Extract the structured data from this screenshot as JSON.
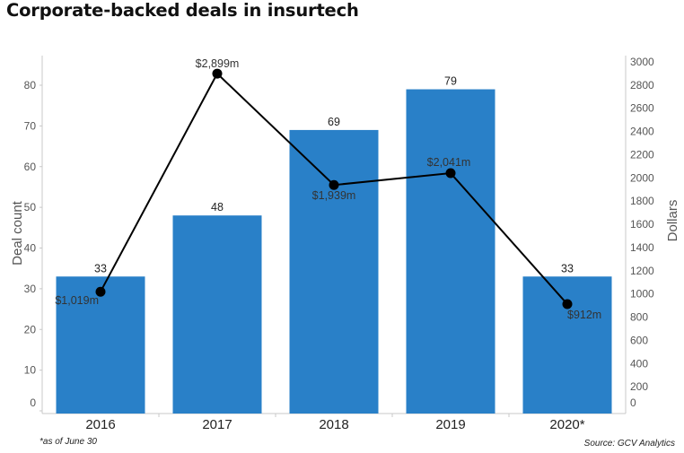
{
  "title": "Corporate-backed deals in insurtech",
  "footnote": "*as of June 30",
  "source": "Source: GCV Analytics",
  "colors": {
    "bar": "#2980c8",
    "line": "#000000",
    "axis": "#c8c8c8"
  },
  "chart_data": {
    "type": "bar",
    "title": "Corporate-backed deals in insurtech",
    "categories": [
      "2016",
      "2017",
      "2018",
      "2019",
      "2020*"
    ],
    "series": [
      {
        "name": "Deal count",
        "type": "bar",
        "axis": "left",
        "values": [
          33,
          48,
          69,
          79,
          33
        ],
        "labels": [
          "33",
          "48",
          "69",
          "79",
          "33"
        ]
      },
      {
        "name": "Dollars",
        "type": "line",
        "axis": "right",
        "values": [
          1019,
          2899,
          1939,
          2041,
          912
        ],
        "labels": [
          "$1,019m",
          "$2,899m",
          "$1,939m",
          "$2,041m",
          "$912m"
        ]
      }
    ],
    "ylabel": "Deal count",
    "ylim": [
      0,
      82
    ],
    "yticks": [
      "0",
      "10",
      "20",
      "30",
      "40",
      "50",
      "60",
      "70",
      "80"
    ],
    "y2label": "Dollars",
    "y2lim": [
      0,
      3000
    ],
    "y2ticks": [
      "0",
      "200",
      "400",
      "600",
      "800",
      "1000",
      "1200",
      "1400",
      "1600",
      "1800",
      "2000",
      "2200",
      "2400",
      "2600",
      "2800",
      "3000"
    ],
    "grid": false,
    "legend": "none"
  }
}
